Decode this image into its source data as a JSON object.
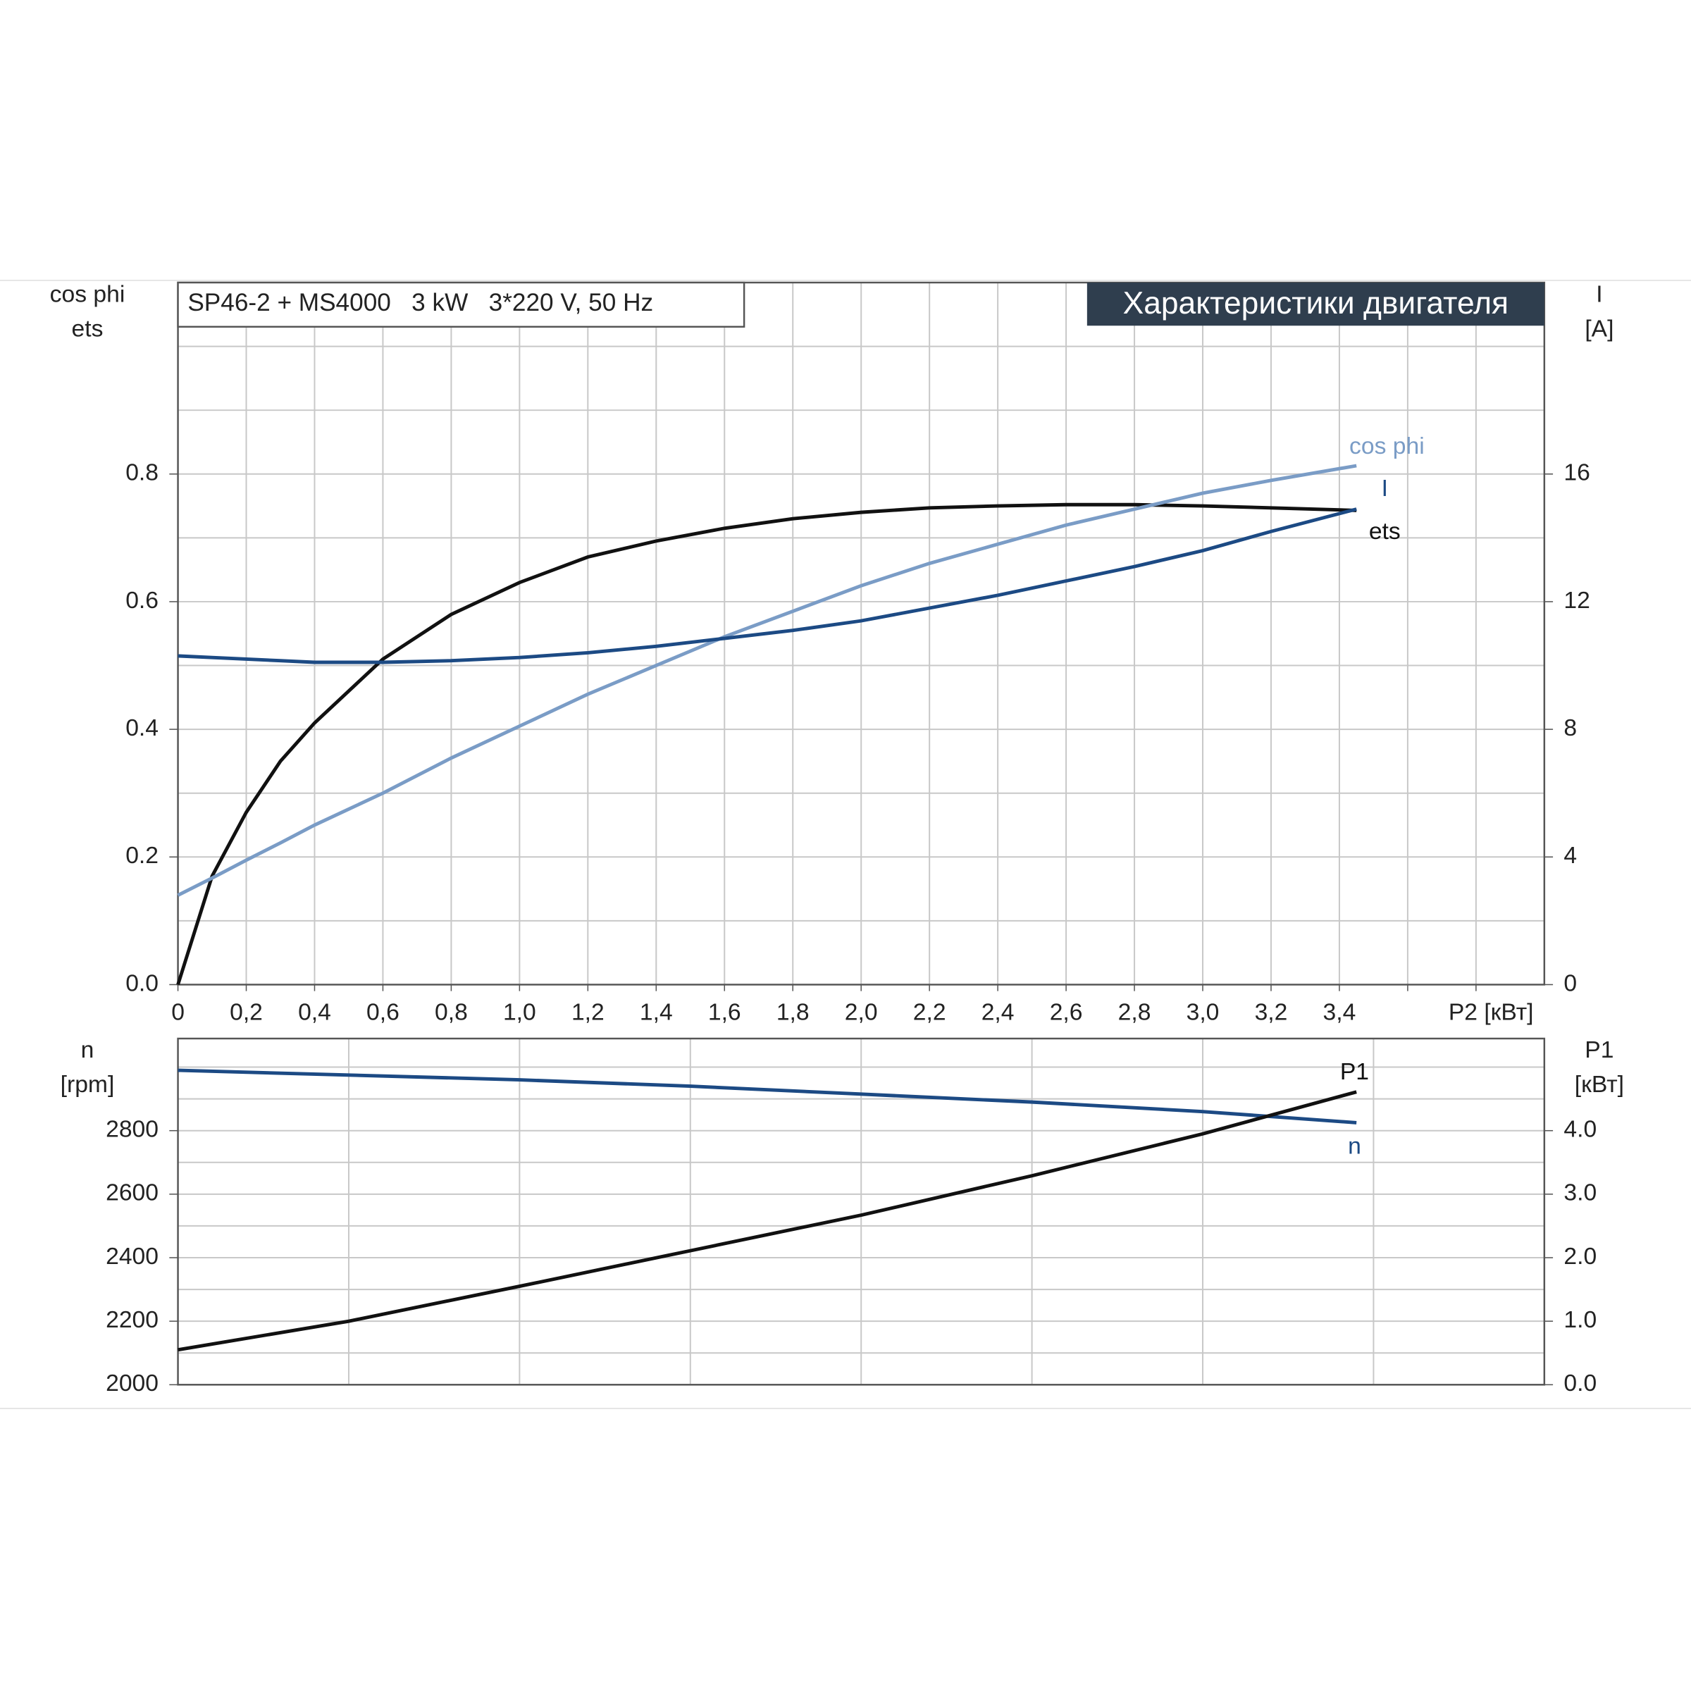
{
  "chart_data": [
    {
      "type": "line",
      "title": "SP46-2 + MS4000   3 kW   3*220 V, 50 Hz",
      "subtitle": "Характеристики двигателя",
      "ylabel_lines": [
        "cos phi",
        "ets"
      ],
      "y2label_lines": [
        "I",
        "[A]"
      ],
      "xlabel": "P2 [кВт]",
      "x": [
        0,
        0.1,
        0.2,
        0.3,
        0.4,
        0.6,
        0.8,
        1.0,
        1.2,
        1.4,
        1.6,
        1.8,
        2.0,
        2.2,
        2.4,
        2.6,
        2.8,
        3.0,
        3.2,
        3.45
      ],
      "xlim": [
        0,
        4.0
      ],
      "xticks": [
        0,
        {
          "value": 0.2,
          "label": "0,2"
        },
        {
          "value": 0.4,
          "label": "0,4"
        },
        {
          "value": 0.6,
          "label": "0,6"
        },
        {
          "value": 0.8,
          "label": "0,8"
        },
        {
          "value": 1.0,
          "label": "1,0"
        },
        {
          "value": 1.2,
          "label": "1,2"
        },
        {
          "value": 1.4,
          "label": "1,4"
        },
        {
          "value": 1.6,
          "label": "1,6"
        },
        {
          "value": 1.8,
          "label": "1,8"
        },
        {
          "value": 2.0,
          "label": "2,0"
        },
        {
          "value": 2.2,
          "label": "2,2"
        },
        {
          "value": 2.4,
          "label": "2,4"
        },
        {
          "value": 2.6,
          "label": "2,6"
        },
        {
          "value": 2.8,
          "label": "2,8"
        },
        {
          "value": 3.0,
          "label": "3,0"
        },
        {
          "value": 3.2,
          "label": "3,2"
        },
        {
          "value": 3.4,
          "label": "3,4"
        }
      ],
      "ylim": [
        0,
        1.1
      ],
      "yticks": [
        {
          "value": 0,
          "label": "0.0"
        },
        0.2,
        0.4,
        0.6,
        0.8
      ],
      "y2lim": [
        0,
        22
      ],
      "y2ticks": [
        0,
        4,
        8,
        12,
        16
      ],
      "grid": true,
      "series": [
        {
          "name": "ets",
          "color": "#111111",
          "values": [
            0,
            0.17,
            0.27,
            0.35,
            0.41,
            0.51,
            0.58,
            0.63,
            0.67,
            0.695,
            0.715,
            0.73,
            0.74,
            0.747,
            0.75,
            0.752,
            0.752,
            0.75,
            0.747,
            0.743
          ]
        },
        {
          "name": "cos phi",
          "color": "#7a9cc6",
          "values": [
            0.14,
            0.167,
            0.195,
            0.222,
            0.25,
            0.3,
            0.355,
            0.405,
            0.455,
            0.5,
            0.545,
            0.585,
            0.625,
            0.66,
            0.69,
            0.72,
            0.745,
            0.77,
            0.79,
            0.813
          ]
        },
        {
          "name": "I",
          "color": "#1c4a84",
          "axis": "y2",
          "values": [
            10.3,
            10.25,
            10.2,
            10.15,
            10.1,
            10.1,
            10.15,
            10.25,
            10.4,
            10.6,
            10.85,
            11.1,
            11.4,
            11.8,
            12.2,
            12.65,
            13.1,
            13.6,
            14.2,
            14.9
          ]
        }
      ]
    },
    {
      "type": "line",
      "ylabel_lines": [
        "n",
        "[rpm]"
      ],
      "y2label_lines": [
        "P1",
        "[кВт]"
      ],
      "x": [
        0,
        0.5,
        1.0,
        1.5,
        2.0,
        2.5,
        3.0,
        3.45
      ],
      "xlim": [
        0,
        4.0
      ],
      "ylim": [
        2000,
        3090
      ],
      "yticks": [
        2000,
        2200,
        2400,
        2600,
        2800
      ],
      "y2lim": [
        0,
        5.45
      ],
      "y2ticks": [
        {
          "value": 0,
          "label": "0.0"
        },
        {
          "value": 1,
          "label": "1.0"
        },
        {
          "value": 2,
          "label": "2.0"
        },
        {
          "value": 3,
          "label": "3.0"
        },
        {
          "value": 4,
          "label": "4.0"
        }
      ],
      "grid": true,
      "series": [
        {
          "name": "n",
          "color": "#1c4a84",
          "values": [
            2990,
            2975,
            2960,
            2940,
            2915,
            2890,
            2860,
            2825
          ]
        },
        {
          "name": "P1",
          "color": "#111111",
          "axis": "y2",
          "values": [
            0.55,
            1.0,
            1.55,
            2.11,
            2.67,
            3.29,
            3.95,
            4.61
          ]
        }
      ]
    }
  ]
}
